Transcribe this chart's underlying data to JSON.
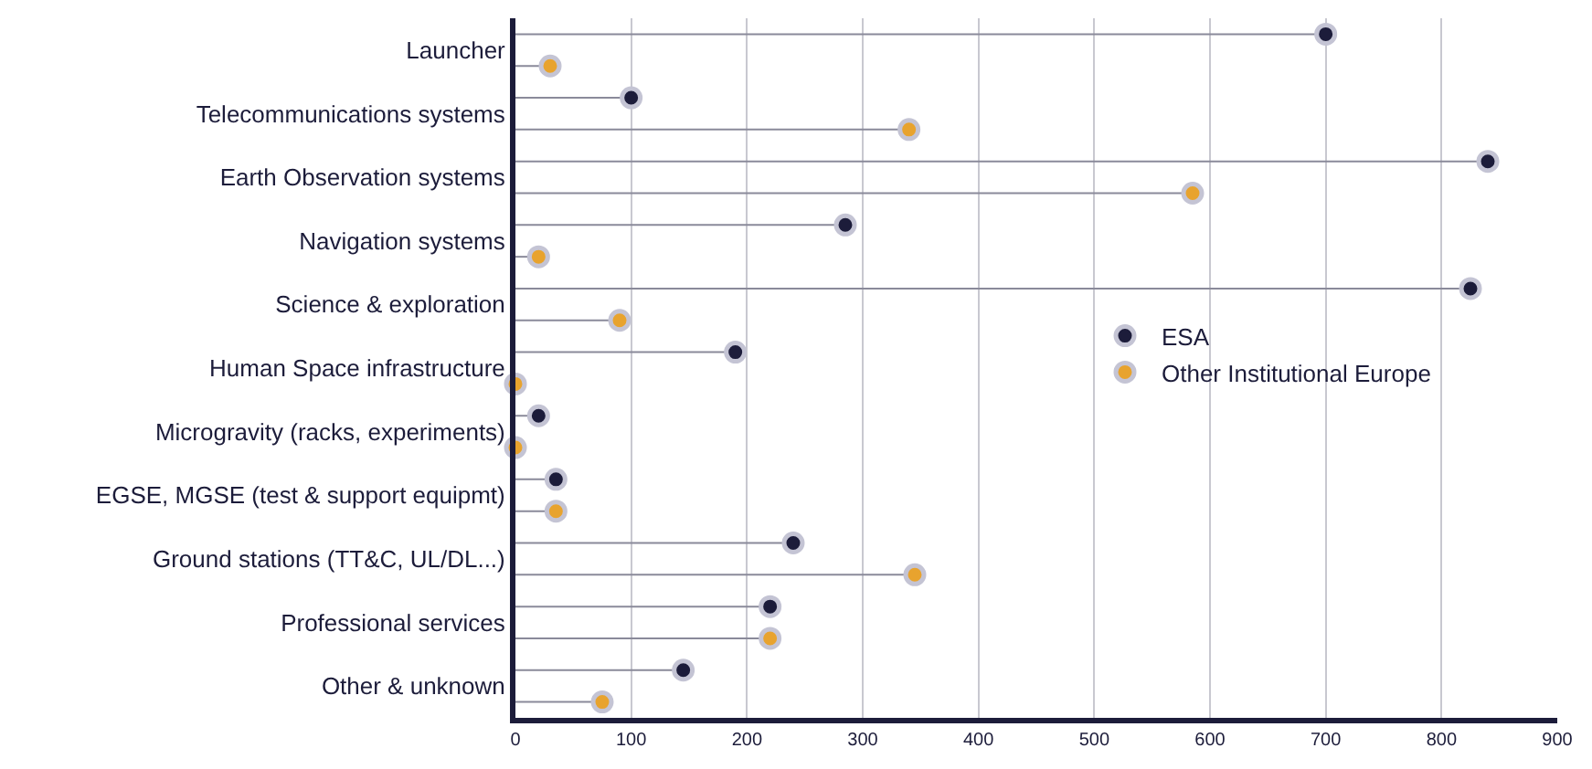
{
  "chart_data": {
    "type": "lollipop",
    "orientation": "horizontal",
    "categories": [
      "Launcher",
      "Telecommunications systems",
      "Earth Observation systems",
      "Navigation systems",
      "Science & exploration",
      "Human Space infrastructure",
      "Microgravity (racks, experiments)",
      "EGSE, MGSE (test & support equipmt)",
      "Ground stations (TT&C, UL/DL...)",
      "Professional services",
      "Other & unknown"
    ],
    "series": [
      {
        "name": "ESA",
        "color": "#1c1c3a",
        "values": [
          700,
          100,
          840,
          285,
          825,
          190,
          20,
          35,
          240,
          220,
          145
        ]
      },
      {
        "name": "Other Institutional Europe",
        "color": "#e8a32e",
        "values": [
          30,
          340,
          585,
          20,
          90,
          0,
          0,
          35,
          345,
          220,
          75
        ]
      }
    ],
    "xlim": [
      0,
      900
    ],
    "xticks": [
      0,
      100,
      200,
      300,
      400,
      500,
      600,
      700,
      800,
      900
    ],
    "grid": "x",
    "legend": "right",
    "marker": "circle"
  }
}
